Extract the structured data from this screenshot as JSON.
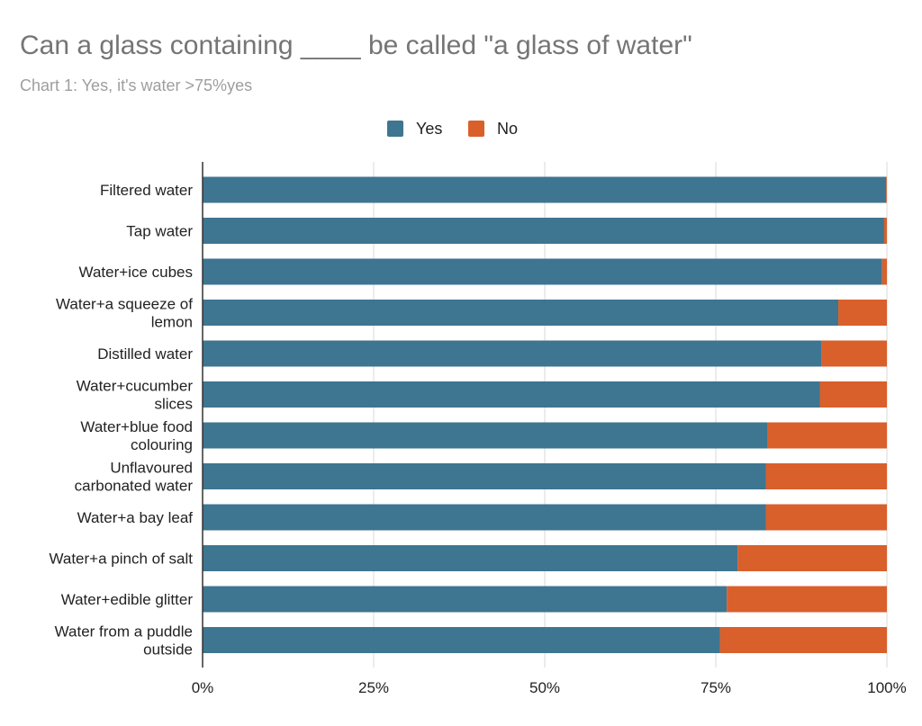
{
  "chart_data": {
    "type": "bar",
    "orientation": "horizontal",
    "stacked": true,
    "title": "Can a glass containing ____ be called \"a glass of water\"",
    "subtitle": "Chart 1: Yes, it's water >75%yes",
    "categories": [
      [
        "Filtered water"
      ],
      [
        "Tap water"
      ],
      [
        "Water+ice cubes"
      ],
      [
        "Water+a squeeze of",
        "lemon"
      ],
      [
        "Distilled water"
      ],
      [
        "Water+cucumber",
        "slices"
      ],
      [
        "Water+blue food",
        "colouring"
      ],
      [
        "Unflavoured",
        "carbonated water"
      ],
      [
        "Water+a bay leaf"
      ],
      [
        "Water+a pinch of salt"
      ],
      [
        "Water+edible glitter"
      ],
      [
        "Water from a puddle",
        "outside"
      ]
    ],
    "series": [
      {
        "name": "Yes",
        "color": "#3e7591",
        "values": [
          99.9,
          99.6,
          99.3,
          92.9,
          90.4,
          90.2,
          82.5,
          82.3,
          82.3,
          78.2,
          76.6,
          75.6
        ]
      },
      {
        "name": "No",
        "color": "#d95f2b",
        "values": [
          0.1,
          0.4,
          0.7,
          7.1,
          9.6,
          9.8,
          17.5,
          17.7,
          17.7,
          21.8,
          23.4,
          24.4
        ]
      }
    ],
    "xlim": [
      0,
      100
    ],
    "xticks": [
      "0%",
      "25%",
      "50%",
      "75%",
      "100%"
    ],
    "grid": true,
    "legend_position": "top-center"
  }
}
